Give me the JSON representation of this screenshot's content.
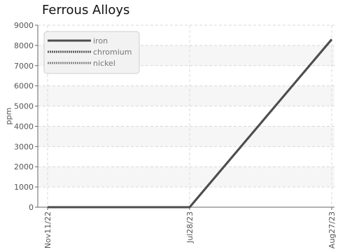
{
  "chart_data": {
    "type": "line",
    "title": "Ferrous Alloys",
    "xlabel": "",
    "ylabel": "ppm",
    "x": [
      "Nov11/22",
      "Jul28/23",
      "Aug27/23"
    ],
    "ylim": [
      0,
      9000
    ],
    "yticks": [
      0,
      1000,
      2000,
      3000,
      4000,
      5000,
      6000,
      7000,
      8000,
      9000
    ],
    "grid": true,
    "legend_position": "top-left",
    "series": [
      {
        "name": "iron",
        "values": [
          0,
          0,
          8300
        ],
        "color": "#4d4d4d",
        "style": "solid"
      },
      {
        "name": "chromium",
        "values": [
          0,
          0,
          8300
        ],
        "color": "#5a5a5a",
        "style": "dotted"
      },
      {
        "name": "nickel",
        "values": [
          0,
          0,
          8300
        ],
        "color": "#888888",
        "style": "dotted"
      }
    ]
  }
}
